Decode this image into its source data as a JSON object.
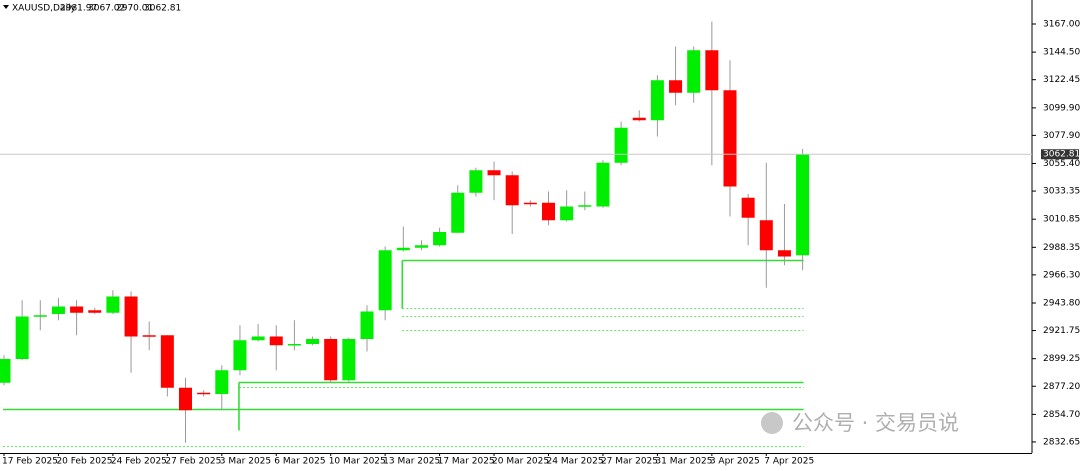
{
  "chart_data": {
    "type": "candlestick",
    "symbol": "XAUUSD,Daily",
    "categories": [
      "17 Feb 2025",
      null,
      null,
      "20 Feb 2025",
      null,
      null,
      "24 Feb 2025",
      null,
      null,
      "27 Feb 2025",
      null,
      null,
      "3 Mar 2025",
      null,
      null,
      "6 Mar 2025",
      null,
      null,
      "10 Mar 2025",
      null,
      null,
      "13 Mar 2025",
      null,
      null,
      "17 Mar 2025",
      null,
      null,
      "20 Mar 2025",
      null,
      null,
      "24 Mar 2025",
      null,
      null,
      "27 Mar 2025",
      null,
      null,
      "31 Mar 2025",
      null,
      null,
      "3 Apr 2025",
      null,
      null,
      "7 Apr 2025",
      null,
      null
    ],
    "open": [
      2880,
      2899,
      2933,
      2935,
      2941,
      2938,
      2936,
      2949,
      2918,
      2918,
      2876,
      2872,
      2871,
      2890,
      2914,
      2917,
      2910,
      2911,
      2915,
      2882,
      2915,
      2938,
      2986,
      2988,
      2990,
      3000,
      3032,
      3050,
      3046,
      3024,
      3024,
      3010,
      3021,
      3021,
      3056,
      3092,
      3090,
      3122,
      3112,
      3146,
      3114,
      3028,
      3010,
      2986,
      2981.97
    ],
    "high": [
      2902,
      2946,
      2946,
      2948,
      2946,
      2940,
      2954,
      2953,
      2929,
      2918,
      2884,
      2874,
      2894,
      2926,
      2927,
      2926,
      2930,
      2917,
      2917,
      2916,
      2942,
      2989,
      3005,
      2994,
      3004,
      3038,
      3052,
      3057,
      3049,
      3026,
      3033,
      3034,
      3033,
      3058,
      3089,
      3098,
      3126,
      3149,
      3149,
      3169,
      3138,
      3031,
      3056,
      3023,
      3067.02
    ],
    "low": [
      2878,
      2898,
      2922,
      2930,
      2918,
      2935,
      2935,
      2888,
      2906,
      2869,
      2832,
      2869,
      2858,
      2886,
      2913,
      2890,
      2906,
      2910,
      2880,
      2881,
      2905,
      2930,
      2985,
      2986,
      2989,
      3000,
      3029,
      3026,
      2999,
      3021,
      3006,
      3009,
      3018,
      3020,
      3054,
      3089,
      3077,
      3102,
      3104,
      3054,
      3013,
      2990,
      2956,
      2974,
      2970.01
    ],
    "close": [
      2899,
      2933,
      2934,
      2941,
      2936,
      2936,
      2949,
      2917,
      2917,
      2876,
      2858,
      2871,
      2890,
      2914,
      2917,
      2910,
      2911,
      2915,
      2882,
      2915,
      2937,
      2986,
      2988,
      2990,
      3000.6,
      3032,
      3050,
      3046,
      3022,
      3023,
      3010,
      3021,
      3022,
      3056,
      3084,
      3090,
      3122,
      3112,
      3146,
      3114,
      3037,
      3012,
      2986,
      2981,
      3062.81
    ],
    "up_color": "#00ee00",
    "down_color": "#ff0000",
    "wick_color": "#999999",
    "ylim": [
      2823.8,
      3186.2
    ],
    "yticks": [
      {
        "value": 3167,
        "label": "3167.00"
      },
      {
        "value": 3144.5,
        "label": "3144.50"
      },
      3122.45,
      {
        "value": 3099.9,
        "label": "3099.90"
      },
      {
        "value": 3077.9,
        "label": "3077.90"
      },
      {
        "value": 3055.4,
        "label": "3055.40"
      },
      3033.35,
      3010.85,
      2988.35,
      {
        "value": 2966.3,
        "label": "2966.30"
      },
      {
        "value": 2943.8,
        "label": "2943.80"
      },
      2921.75,
      2899.25,
      {
        "value": 2877.2,
        "label": "2877.20"
      },
      {
        "value": 2854.7,
        "label": "2854.70"
      },
      2832.65
    ],
    "levels": [
      {
        "value": 2978,
        "style": "solid",
        "from": 22
      },
      {
        "value": 2940,
        "style": "dotted",
        "from": 22
      },
      {
        "value": 2933.4,
        "style": "dotted",
        "from": 22
      },
      {
        "value": 2922,
        "style": "dotted",
        "from": 22
      },
      {
        "value": 2881,
        "style": "solid",
        "from": 13
      },
      {
        "value": 2877,
        "style": "dotted",
        "from": 13
      },
      {
        "value": 2859,
        "style": "solid",
        "from": 0
      },
      {
        "value": 2829.4,
        "style": "dotted",
        "from": 0
      }
    ],
    "level_color": "#33dd33",
    "watermark": "公众号 · 交易员说"
  }
}
